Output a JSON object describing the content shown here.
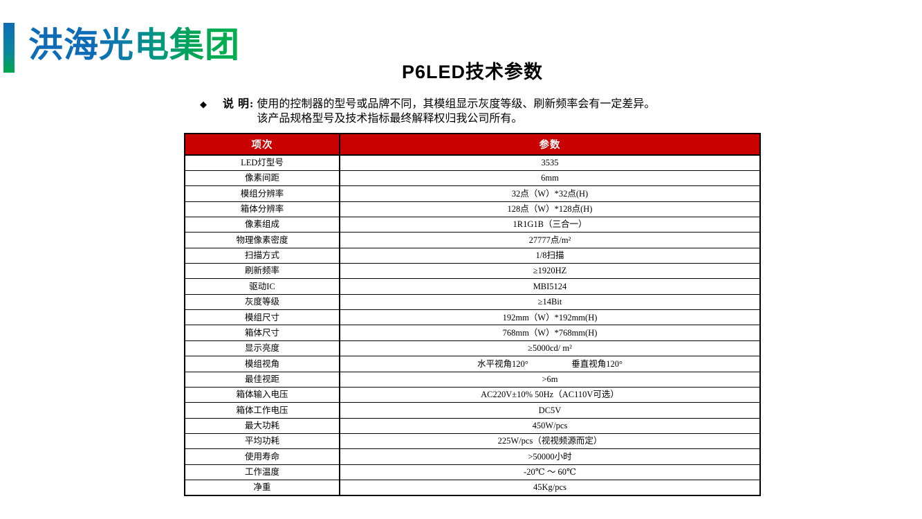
{
  "logo": {
    "text": "洪海光电集团"
  },
  "title": "P6LED技术参数",
  "note": {
    "bullet": "◆",
    "label": "说 明",
    "colon": ":",
    "line1": "使用的控制器的型号或品牌不同，其模组显示灰度等级、刷新频率会有一定差异。",
    "line2": "该产品规格型号及技术指标最终解释权归我公司所有。"
  },
  "colors": {
    "header_red": "#c80000",
    "logo_blue": "#0d6cb5",
    "logo_green": "#00b050"
  },
  "table": {
    "headers": [
      "项次",
      "参数"
    ],
    "rows": [
      {
        "label": "LED灯型号",
        "value": "3535"
      },
      {
        "label": "像素间距",
        "value": "6mm"
      },
      {
        "label": "模组分辨率",
        "value": "32点（W）*32点(H)"
      },
      {
        "label": "箱体分辨率",
        "value": "128点（W）*128点(H)"
      },
      {
        "label": "像素组成",
        "value": "1R1G1B（三合一）"
      },
      {
        "label": "物理像素密度",
        "value": "27777点/m²"
      },
      {
        "label": "扫描方式",
        "value": "1/8扫描"
      },
      {
        "label": "刷新频率",
        "value": "≥1920HZ"
      },
      {
        "label": "驱动IC",
        "value": "MBI5124"
      },
      {
        "label": "灰度等级",
        "value": "≥14Bit"
      },
      {
        "label": "模组尺寸",
        "value": "192mm（W）*192mm(H)"
      },
      {
        "label": "箱体尺寸",
        "value": "768mm（W）*768mm(H)"
      },
      {
        "label": "显示亮度",
        "value": "≥5000cd/ m²"
      },
      {
        "label": "模组视角",
        "value": "水平视角120°　　　　　垂直视角120°"
      },
      {
        "label": "最佳视距",
        "value": ">6m"
      },
      {
        "label": "箱体输入电压",
        "value": "AC220V±10% 50Hz（AC110V可选）"
      },
      {
        "label": "箱体工作电压",
        "value": "DC5V"
      },
      {
        "label": "最大功耗",
        "value": "450W/pcs"
      },
      {
        "label": "平均功耗",
        "value": "225W/pcs（视视频源而定）"
      },
      {
        "label": "使用寿命",
        "value": ">50000小时"
      },
      {
        "label": "工作温度",
        "value": "-20℃ ～ 60℃"
      },
      {
        "label": "净重",
        "value": "45Kg/pcs"
      }
    ]
  }
}
